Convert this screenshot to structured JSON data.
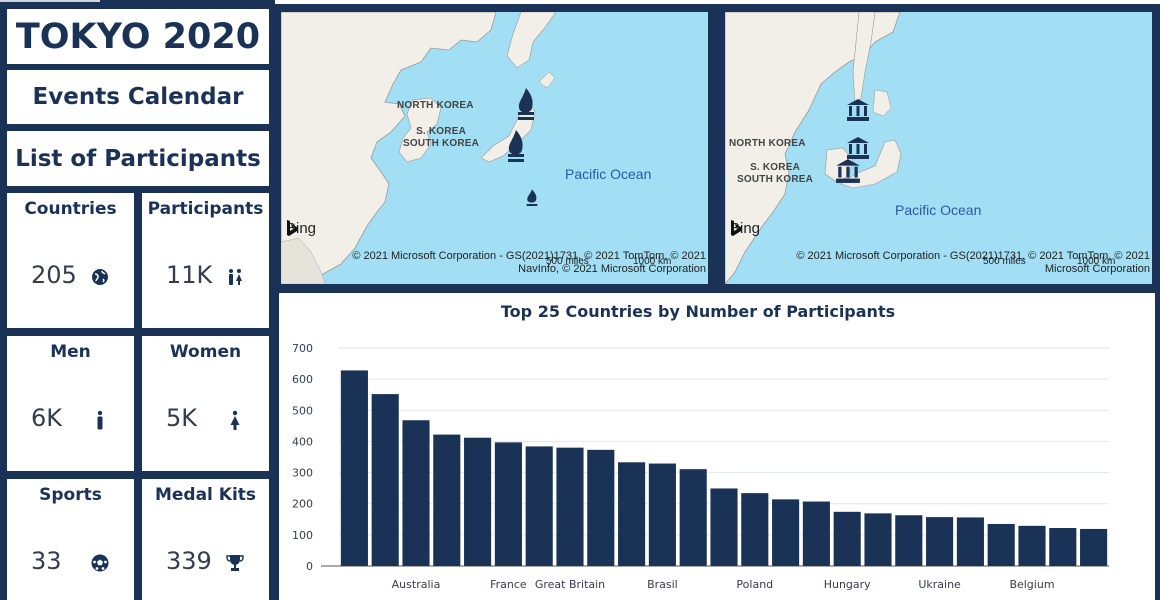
{
  "header": {
    "title": "TOKYO 2020",
    "events_calendar": "Events Calendar",
    "list_of_participants": "List of Participants"
  },
  "cards": [
    {
      "title": "Countries",
      "value": "205",
      "icon": "globe-icon"
    },
    {
      "title": "Participants",
      "value": "11K",
      "icon": "people-icon"
    },
    {
      "title": "Men",
      "value": "6K",
      "icon": "man-icon"
    },
    {
      "title": "Women",
      "value": "5K",
      "icon": "woman-icon"
    },
    {
      "title": "Sports",
      "value": "33",
      "icon": "soccer-ball-icon"
    },
    {
      "title": "Medal Kits",
      "value": "339",
      "icon": "trophy-icon"
    }
  ],
  "maps": [
    {
      "ocean": "Pacific Ocean",
      "north_korea": "NORTH KOREA",
      "south_korea": "S. KOREA\nSOUTH KOREA",
      "bing": "Bing",
      "copyright_line1": "© 2021 Microsoft Corporation - GS(2021)1731, © 2021 TomTom, © 2021",
      "copyright_line2": "NavInfo, © 2021 Microsoft Corporation",
      "scale_miles": "500 miles",
      "scale_km": "1000 km",
      "marker_icon": "olympic-flame-icon"
    },
    {
      "ocean": "Pacific Ocean",
      "north_korea": "NORTH KOREA",
      "south_korea": "S. KOREA\nSOUTH KOREA",
      "bing": "Bing",
      "copyright_line1": "© 2021 Microsoft Corporation - GS(2021)1731, © 2021 TomTom, © 2021",
      "copyright_line2": "Microsoft Corporation",
      "scale_miles": "500 miles",
      "scale_km": "1000 km",
      "marker_icon": "stadium-icon"
    }
  ],
  "colors": {
    "navy": "#1b3257",
    "ocean": "#a2dff5",
    "land": "#f1efe8",
    "bar": "#1b3257"
  },
  "chart_data": {
    "type": "bar",
    "title": "Top 25 Countries by Number of Participants",
    "xlabel": "",
    "ylabel": "",
    "ylim": [
      0,
      700
    ],
    "yticks": [
      0,
      100,
      200,
      300,
      400,
      500,
      600,
      700
    ],
    "grid": true,
    "legend": "none",
    "shown_category_labels": [
      "Australia",
      "France",
      "Great Britain",
      "Brasil",
      "Poland",
      "Hungary",
      "Ukraine",
      "Belgium"
    ],
    "categories": [
      "",
      "",
      "Australia",
      "",
      "",
      "France",
      "",
      "Great Britain",
      "",
      "",
      "Brasil",
      "",
      "",
      "Poland",
      "",
      "",
      "Hungary",
      "",
      "",
      "Ukraine",
      "",
      "",
      "Belgium",
      "",
      ""
    ],
    "values": [
      628,
      552,
      468,
      422,
      412,
      397,
      384,
      380,
      373,
      333,
      329,
      311,
      249,
      234,
      214,
      207,
      174,
      169,
      163,
      157,
      156,
      135,
      129,
      122,
      119
    ]
  }
}
